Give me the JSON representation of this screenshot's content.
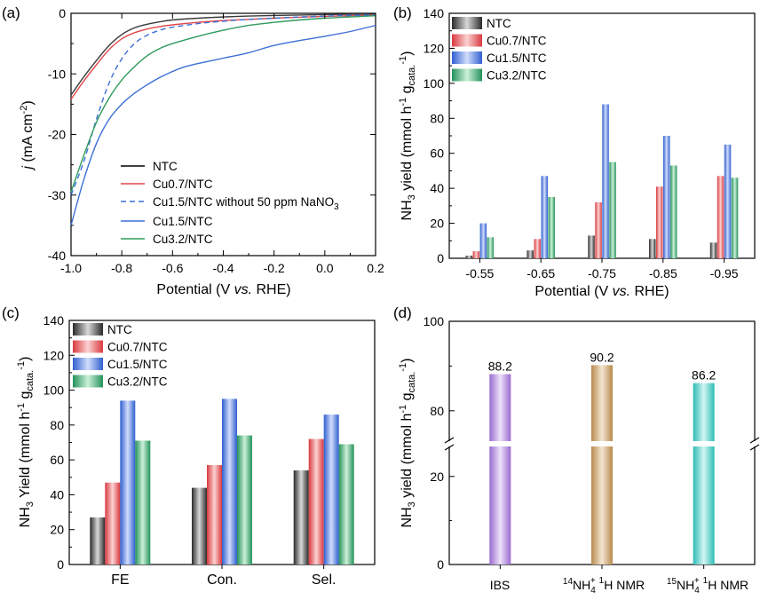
{
  "colors": {
    "NTC": "#3a3a3a",
    "Cu0.7/NTC": "#e0474c",
    "Cu1.5/NTC": "#3d6fd6",
    "Cu3.2/NTC": "#2e9b5c",
    "IBS": "#a77ad6",
    "14N": "#c4975a",
    "15N": "#43c7c0"
  },
  "chart_data": [
    {
      "panel": "(a)",
      "type": "line",
      "xlabel": "Potential (V vs. RHE)",
      "ylabel": "j (mA cm-2)",
      "xlim": [
        -1.0,
        0.2
      ],
      "ylim": [
        -40,
        0
      ],
      "xticks": [
        "-1.0",
        "-0.8",
        "-0.6",
        "-0.4",
        "-0.2",
        "0.0",
        "0.2"
      ],
      "yticks": [
        "0",
        "-10",
        "-20",
        "-30",
        "-40"
      ],
      "legend": {
        "NTC": "NTC",
        "Cu0.7/NTC": "Cu0.7/NTC",
        "nitrate_free_prefix": "Cu1.5/NTC without 50 ppm NaNO",
        "nitrate_free_subscript": "3",
        "Cu1.5/NTC": "Cu1.5/NTC",
        "Cu3.2/NTC": "Cu3.2/NTC"
      },
      "series": [
        {
          "name": "NTC",
          "dash": false,
          "x": [
            -1.0,
            -0.95,
            -0.9,
            -0.85,
            -0.8,
            -0.75,
            -0.7,
            -0.65,
            -0.6,
            -0.5,
            -0.4,
            -0.3,
            -0.2,
            -0.1,
            0.0,
            0.1,
            0.2
          ],
          "y": [
            -13.5,
            -10.5,
            -7.8,
            -5.3,
            -3.5,
            -2.4,
            -1.8,
            -1.4,
            -1.1,
            -0.8,
            -0.6,
            -0.45,
            -0.35,
            -0.28,
            -0.2,
            -0.15,
            -0.1
          ]
        },
        {
          "name": "Cu0.7/NTC",
          "dash": false,
          "x": [
            -1.0,
            -0.95,
            -0.9,
            -0.85,
            -0.8,
            -0.75,
            -0.7,
            -0.65,
            -0.6,
            -0.5,
            -0.4,
            -0.3,
            -0.2,
            -0.1,
            0.0,
            0.1,
            0.2
          ],
          "y": [
            -14.2,
            -11.2,
            -8.5,
            -6.0,
            -4.2,
            -3.2,
            -2.6,
            -2.2,
            -1.9,
            -1.5,
            -1.2,
            -1.0,
            -0.8,
            -0.65,
            -0.5,
            -0.4,
            -0.3
          ]
        },
        {
          "name": "nitrate_free",
          "dash": true,
          "x": [
            -1.0,
            -0.95,
            -0.9,
            -0.85,
            -0.8,
            -0.75,
            -0.7,
            -0.65,
            -0.6,
            -0.5,
            -0.4,
            -0.3,
            -0.2,
            -0.1,
            0.0,
            0.1,
            0.2
          ],
          "y": [
            -30.0,
            -24.5,
            -17.5,
            -11.5,
            -7.5,
            -5.0,
            -3.6,
            -2.8,
            -2.3,
            -1.7,
            -1.3,
            -1.0,
            -0.8,
            -0.6,
            -0.45,
            -0.35,
            -0.25
          ]
        },
        {
          "name": "Cu1.5/NTC",
          "dash": false,
          "x": [
            -1.0,
            -0.95,
            -0.9,
            -0.85,
            -0.8,
            -0.75,
            -0.7,
            -0.65,
            -0.6,
            -0.55,
            -0.5,
            -0.4,
            -0.3,
            -0.2,
            -0.1,
            0.0,
            0.1,
            0.2
          ],
          "y": [
            -35.0,
            -27.5,
            -21.5,
            -17.5,
            -15.0,
            -13.2,
            -11.8,
            -10.6,
            -9.6,
            -8.8,
            -8.3,
            -7.4,
            -6.5,
            -5.3,
            -4.5,
            -3.8,
            -3.0,
            -2.0
          ]
        },
        {
          "name": "Cu3.2/NTC",
          "dash": false,
          "x": [
            -1.0,
            -0.95,
            -0.9,
            -0.85,
            -0.8,
            -0.75,
            -0.7,
            -0.65,
            -0.6,
            -0.5,
            -0.4,
            -0.3,
            -0.2,
            -0.1,
            0.0,
            0.1,
            0.2
          ],
          "y": [
            -29.5,
            -23.5,
            -18.0,
            -14.0,
            -11.0,
            -8.8,
            -7.0,
            -5.8,
            -5.0,
            -3.8,
            -2.8,
            -2.0,
            -1.5,
            -1.1,
            -0.8,
            -0.6,
            -0.4
          ]
        }
      ]
    },
    {
      "panel": "(b)",
      "type": "bar",
      "xlabel": "Potential (V vs. RHE)",
      "ylabel": "NH3 yield (mmol h-1 gcata.-1)",
      "ylim": [
        0,
        140
      ],
      "yticks": [
        "0",
        "20",
        "40",
        "60",
        "80",
        "100",
        "120",
        "140"
      ],
      "categories": [
        "-0.55",
        "-0.65",
        "-0.75",
        "-0.85",
        "-0.95"
      ],
      "legend": [
        "NTC",
        "Cu0.7/NTC",
        "Cu1.5/NTC",
        "Cu3.2/NTC"
      ],
      "series": [
        {
          "name": "NTC",
          "values": [
            1.5,
            4.5,
            13,
            11,
            9
          ]
        },
        {
          "name": "Cu0.7/NTC",
          "values": [
            4,
            11,
            32,
            41,
            47
          ]
        },
        {
          "name": "Cu1.5/NTC",
          "values": [
            20,
            47,
            88,
            70,
            65
          ]
        },
        {
          "name": "Cu3.2/NTC",
          "values": [
            12,
            35,
            55,
            53,
            46
          ]
        }
      ]
    },
    {
      "panel": "(c)",
      "type": "bar",
      "xlabel": "",
      "ylabel": "NH3 Yield (mmol h-1 gcata.-1)",
      "ylim": [
        0,
        140
      ],
      "yticks": [
        "0",
        "20",
        "40",
        "60",
        "80",
        "100",
        "120",
        "140"
      ],
      "categories": [
        "FE",
        "Con.",
        "Sel."
      ],
      "legend": [
        "NTC",
        "Cu0.7/NTC",
        "Cu1.5/NTC",
        "Cu3.2/NTC"
      ],
      "series": [
        {
          "name": "NTC",
          "values": [
            27,
            44,
            54
          ]
        },
        {
          "name": "Cu0.7/NTC",
          "values": [
            47,
            57,
            72
          ]
        },
        {
          "name": "Cu1.5/NTC",
          "values": [
            94,
            95,
            86
          ]
        },
        {
          "name": "Cu3.2/NTC",
          "values": [
            71,
            74,
            69
          ]
        }
      ]
    },
    {
      "panel": "(d)",
      "type": "bar",
      "xlabel": "",
      "ylabel": "NH3 yield (mmol h-1 gcata.-1)",
      "axis_break": [
        25,
        75
      ],
      "yticks": [
        "0",
        "20",
        "80",
        "100"
      ],
      "ylim_lower": [
        0,
        25
      ],
      "ylim_upper": [
        75,
        100
      ],
      "categories": [
        "IBS",
        "14NH4+ 1H NMR",
        "15NH4+ 1H NMR"
      ],
      "values": [
        88.2,
        90.2,
        86.2
      ],
      "data_labels": [
        "88.2",
        "90.2",
        "86.2"
      ],
      "tick_label_parts": {
        "c0": "IBS",
        "c1_iso": "14",
        "c1_main": "NH",
        "c1_sub": "4",
        "c1_sup": "+",
        "c1_tail": "1",
        "c1_end": "H NMR",
        "c2_iso": "15",
        "c2_main": "NH",
        "c2_sub": "4",
        "c2_sup": "+",
        "c2_tail": "1",
        "c2_end": "H NMR"
      }
    }
  ],
  "labels": {
    "pa": "(a)",
    "pb": "(b)",
    "pc": "(c)",
    "pd": "(d)",
    "a_y_j": "j",
    "a_y_unit": " (mA cm",
    "a_y_exp": "-2",
    "a_y_close": ")",
    "a_x_main": "Potential (V ",
    "a_x_it": "vs.",
    "a_x_end": " RHE)",
    "nh3": "NH",
    "three": "3",
    "yield_b": " yield (mmol h",
    "minus1": "-1",
    "g": " g",
    "cata": "cata.",
    "close": ")",
    "yield_c": " Yield (mmol h"
  }
}
